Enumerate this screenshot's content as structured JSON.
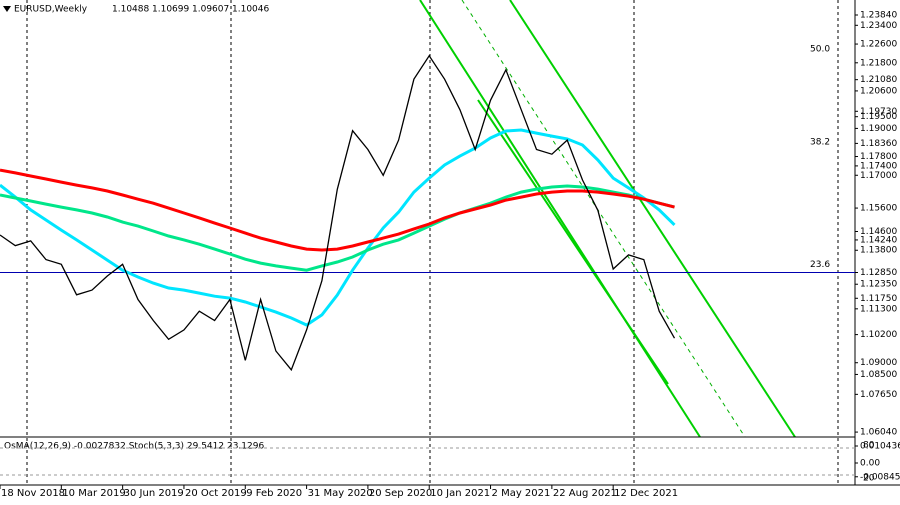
{
  "chart_data": {
    "type": "line",
    "symbol": "EURUSD,Weekly",
    "ohlc": [
      1.10488,
      1.10699,
      1.09607,
      1.10046
    ],
    "categories": [
      "18 Nov 2018",
      null,
      null,
      null,
      "10 Mar 2019",
      null,
      null,
      null,
      "30 Jun 2019",
      null,
      null,
      null,
      "20 Oct 2019",
      null,
      null,
      null,
      "9 Feb 2020",
      null,
      null,
      null,
      "31 May 2020",
      null,
      null,
      null,
      "20 Sep 2020",
      null,
      null,
      null,
      "10 Jan 2021",
      null,
      null,
      null,
      "2 May 2021",
      null,
      null,
      null,
      "22 Aug 2021",
      null,
      null,
      null,
      "12 Dec 2021",
      null,
      null,
      null,
      null
    ],
    "series": [
      {
        "color": "#000000",
        "values": [
          1.1445,
          1.14,
          1.142,
          1.134,
          1.132,
          1.119,
          1.121,
          1.127,
          1.132,
          1.117,
          1.108,
          1.1,
          1.104,
          1.112,
          1.108,
          1.117,
          1.091,
          1.117,
          1.095,
          1.087,
          1.104,
          1.125,
          1.164,
          1.189,
          1.181,
          1.17,
          1.185,
          1.211,
          1.221,
          1.211,
          1.198,
          1.181,
          1.202,
          1.215,
          1.198,
          1.181,
          1.179,
          1.185,
          1.168,
          1.155,
          1.13,
          1.136,
          1.134,
          1.112,
          1.10046
        ]
      },
      {
        "color": "#ff0000",
        "values": [
          1.1722,
          1.171,
          1.1697,
          1.1684,
          1.1671,
          1.1658,
          1.1646,
          1.1633,
          1.1616,
          1.1598,
          1.1581,
          1.156,
          1.1539,
          1.1518,
          1.1496,
          1.1475,
          1.1453,
          1.1432,
          1.1415,
          1.1398,
          1.1385,
          1.1381,
          1.1385,
          1.1398,
          1.1415,
          1.1432,
          1.1449,
          1.1471,
          1.1492,
          1.1518,
          1.1539,
          1.1556,
          1.1573,
          1.1594,
          1.1607,
          1.162,
          1.1628,
          1.1633,
          1.1633,
          1.1628,
          1.162,
          1.1611,
          1.1598,
          1.1581,
          1.1564
        ]
      },
      {
        "color": "#00e68a",
        "values": [
          1.1616,
          1.1603,
          1.159,
          1.1577,
          1.1564,
          1.1552,
          1.1539,
          1.1522,
          1.15,
          1.1483,
          1.1462,
          1.1441,
          1.1424,
          1.1406,
          1.1385,
          1.1364,
          1.1342,
          1.1325,
          1.1313,
          1.1304,
          1.1295,
          1.1313,
          1.133,
          1.1351,
          1.1381,
          1.1406,
          1.1424,
          1.1453,
          1.1483,
          1.1513,
          1.1539,
          1.156,
          1.1581,
          1.1607,
          1.1628,
          1.1641,
          1.165,
          1.1654,
          1.165,
          1.1641,
          1.1628,
          1.1616,
          1.1598,
          1.1581,
          1.1564
        ]
      },
      {
        "color": "#00e5ff",
        "values": [
          1.1658,
          1.1607,
          1.1552,
          1.1509,
          1.1466,
          1.1424,
          1.1381,
          1.1338,
          1.1295,
          1.1266,
          1.124,
          1.1219,
          1.121,
          1.1197,
          1.1184,
          1.1176,
          1.1159,
          1.1138,
          1.1116,
          1.1091,
          1.1061,
          1.1104,
          1.1189,
          1.1295,
          1.1389,
          1.1475,
          1.1543,
          1.1628,
          1.1688,
          1.1744,
          1.1782,
          1.1816,
          1.1859,
          1.1889,
          1.1893,
          1.188,
          1.1867,
          1.1855,
          1.1829,
          1.1765,
          1.1688,
          1.1646,
          1.1603,
          1.1552,
          1.1488
        ]
      }
    ],
    "ylim": [
      1.0583,
      1.2448
    ],
    "yticks": [
      {
        "value": 1.2384,
        "label": "1.23840"
      },
      {
        "value": 1.234,
        "label": "1.23400"
      },
      {
        "value": 1.226,
        "label": "1.22600"
      },
      {
        "value": 1.218,
        "label": "1.21800"
      },
      {
        "value": 1.2108,
        "label": "1.21080"
      },
      {
        "value": 1.206,
        "label": "1.20600"
      },
      {
        "value": 1.1973,
        "label": "1.19730"
      },
      {
        "value": 1.195,
        "label": "1.19500"
      },
      {
        "value": 1.19,
        "label": "1.19000"
      },
      {
        "value": 1.1836,
        "label": "1.18360"
      },
      {
        "value": 1.178,
        "label": "1.17800"
      },
      {
        "value": 1.174,
        "label": "1.17400"
      },
      {
        "value": 1.17,
        "label": "1.17000"
      },
      {
        "value": 1.156,
        "label": "1.15600"
      },
      {
        "value": 1.146,
        "label": "1.14600"
      },
      {
        "value": 1.1424,
        "label": "1.14240"
      },
      {
        "value": 1.138,
        "label": "1.13800"
      },
      {
        "value": 1.1285,
        "label": "1.12850"
      },
      {
        "value": 1.1235,
        "label": "1.12350"
      },
      {
        "value": 1.1175,
        "label": "1.11750"
      },
      {
        "value": 1.113,
        "label": "1.11300"
      },
      {
        "value": 1.102,
        "label": "1.10200"
      },
      {
        "value": 1.09,
        "label": "1.09000"
      },
      {
        "value": 1.085,
        "label": "1.08500"
      },
      {
        "value": 1.0765,
        "label": "1.07650"
      },
      {
        "value": 1.0604,
        "label": "1.06040"
      }
    ],
    "fib_levels": [
      {
        "label": "50.0",
        "value": 1.2205
      },
      {
        "label": "38.2",
        "value": 1.1808
      },
      {
        "label": "23.6",
        "value": 1.1285
      }
    ],
    "indicator": {
      "label": "OsMA(12,26,9) -0.0027832 Stoch(5,3,3) 29.5412 23.1296",
      "ylim": [
        -0.01289,
        0.01473
      ],
      "yticks": [
        0.0104363,
        {
          "value": 0,
          "label": "0.00"
        },
        -0.008455
      ],
      "stoch_ylim": [
        0,
        100
      ],
      "stoch_ticks": [
        80,
        20
      ]
    }
  }
}
